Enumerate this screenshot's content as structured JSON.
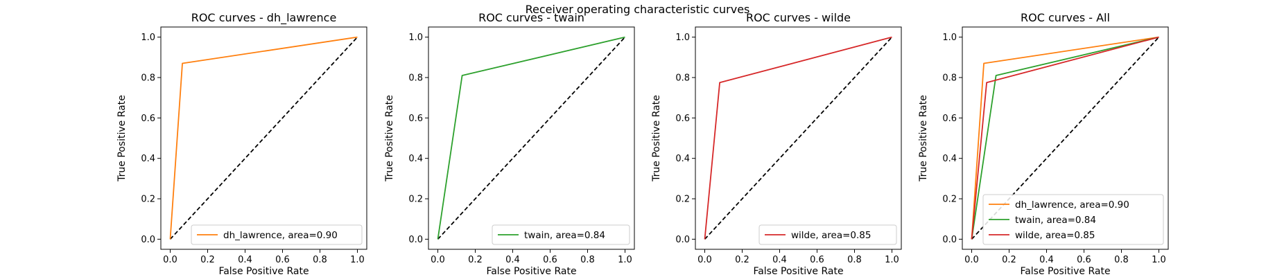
{
  "figure": {
    "suptitle": "Receiver operating characteristic curves"
  },
  "colors": {
    "dh_lawrence": "#ff7f0e",
    "twain": "#2ca02c",
    "wilde": "#d62728",
    "diagonal": "#000000"
  },
  "chart_data": [
    {
      "type": "line",
      "title": "ROC curves - dh_lawrence",
      "xlabel": "False Positive Rate",
      "ylabel": "True Positive Rate",
      "xlim": [
        0,
        1
      ],
      "ylim": [
        0,
        1
      ],
      "xticks": [
        "0.0",
        "0.2",
        "0.4",
        "0.6",
        "0.8",
        "1.0"
      ],
      "yticks": [
        "0.0",
        "0.2",
        "0.4",
        "0.6",
        "0.8",
        "1.0"
      ],
      "legend_position": "lower-right",
      "series": [
        {
          "name": "dh_lawrence, area=0.90",
          "color": "#ff7f0e",
          "x": [
            0,
            0.065,
            1
          ],
          "y": [
            0,
            0.87,
            1
          ]
        }
      ],
      "reference_line": {
        "x": [
          0,
          1
        ],
        "y": [
          0,
          1
        ],
        "style": "dashed"
      }
    },
    {
      "type": "line",
      "title": "ROC curves - twain",
      "xlabel": "False Positive Rate",
      "ylabel": "True Positive Rate",
      "xlim": [
        0,
        1
      ],
      "ylim": [
        0,
        1
      ],
      "xticks": [
        "0.0",
        "0.2",
        "0.4",
        "0.6",
        "0.8",
        "1.0"
      ],
      "yticks": [
        "0.0",
        "0.2",
        "0.4",
        "0.6",
        "0.8",
        "1.0"
      ],
      "legend_position": "lower-right",
      "series": [
        {
          "name": "twain, area=0.84",
          "color": "#2ca02c",
          "x": [
            0,
            0.13,
            1
          ],
          "y": [
            0,
            0.81,
            1
          ]
        }
      ],
      "reference_line": {
        "x": [
          0,
          1
        ],
        "y": [
          0,
          1
        ],
        "style": "dashed"
      }
    },
    {
      "type": "line",
      "title": "ROC curves - wilde",
      "xlabel": "False Positive Rate",
      "ylabel": "True Positive Rate",
      "xlim": [
        0,
        1
      ],
      "ylim": [
        0,
        1
      ],
      "xticks": [
        "0.0",
        "0.2",
        "0.4",
        "0.6",
        "0.8",
        "1.0"
      ],
      "yticks": [
        "0.0",
        "0.2",
        "0.4",
        "0.6",
        "0.8",
        "1.0"
      ],
      "legend_position": "lower-right",
      "series": [
        {
          "name": "wilde, area=0.85",
          "color": "#d62728",
          "x": [
            0,
            0.08,
            1
          ],
          "y": [
            0,
            0.775,
            1
          ]
        }
      ],
      "reference_line": {
        "x": [
          0,
          1
        ],
        "y": [
          0,
          1
        ],
        "style": "dashed"
      }
    },
    {
      "type": "line",
      "title": "ROC curves - All",
      "xlabel": "False Positive Rate",
      "ylabel": "True Positive Rate",
      "xlim": [
        0,
        1
      ],
      "ylim": [
        0,
        1
      ],
      "xticks": [
        "0.0",
        "0.2",
        "0.4",
        "0.6",
        "0.8",
        "1.0"
      ],
      "yticks": [
        "0.0",
        "0.2",
        "0.4",
        "0.6",
        "0.8",
        "1.0"
      ],
      "legend_position": "lower-right",
      "series": [
        {
          "name": "dh_lawrence, area=0.90",
          "color": "#ff7f0e",
          "x": [
            0,
            0.065,
            1
          ],
          "y": [
            0,
            0.87,
            1
          ]
        },
        {
          "name": "twain, area=0.84",
          "color": "#2ca02c",
          "x": [
            0,
            0.13,
            1
          ],
          "y": [
            0,
            0.81,
            1
          ]
        },
        {
          "name": "wilde, area=0.85",
          "color": "#d62728",
          "x": [
            0,
            0.08,
            1
          ],
          "y": [
            0,
            0.775,
            1
          ]
        }
      ],
      "reference_line": {
        "x": [
          0,
          1
        ],
        "y": [
          0,
          1
        ],
        "style": "dashed"
      }
    }
  ]
}
